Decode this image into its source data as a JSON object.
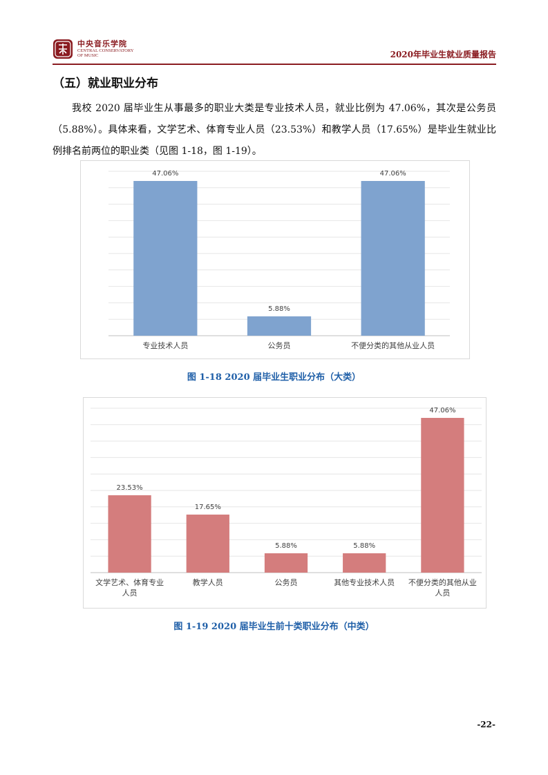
{
  "header": {
    "logo_cn": "中央音乐学院",
    "logo_en_line1": "CENTRAL CONSERVATORY",
    "logo_en_line2": "OF MUSIC",
    "report_title": "2020年毕业生就业质量报告",
    "accent_color": "#8a1b20"
  },
  "section_title": "（五）就业职业分布",
  "paragraph": "我校 2020 届毕业生从事最多的职业大类是专业技术人员，就业比例为 47.06%，其次是公务员（5.88%）。具体来看，文学艺术、体育专业人员（23.53%）和教学人员（17.65%）是毕业生就业比例排名前两位的职业类（见图 1-18，图 1-19）。",
  "chart_data": [
    {
      "type": "bar",
      "categories": [
        "专业技术人员",
        "公务员",
        "不便分类的其他从业人员"
      ],
      "values": [
        47.06,
        5.88,
        47.06
      ],
      "data_labels": [
        "47.06%",
        "5.88%",
        "47.06%"
      ],
      "ylim": [
        0,
        50
      ],
      "grid": true,
      "bar_color": "#7fa3cf",
      "caption": "图 1-18    2020 届毕业生职业分布（大类）"
    },
    {
      "type": "bar",
      "categories": [
        "文学艺术、体育专业人员",
        "教学人员",
        "公务员",
        "其他专业技术人员",
        "不便分类的其他从业人员"
      ],
      "values": [
        23.53,
        17.65,
        5.88,
        5.88,
        47.06
      ],
      "data_labels": [
        "23.53%",
        "17.65%",
        "5.88%",
        "5.88%",
        "47.06%"
      ],
      "ylim": [
        0,
        50
      ],
      "grid": true,
      "bar_color": "#d47d7d",
      "caption": "图 1-19    2020 届毕业生前十类职业分布（中类）"
    }
  ],
  "page_number": "-22-"
}
